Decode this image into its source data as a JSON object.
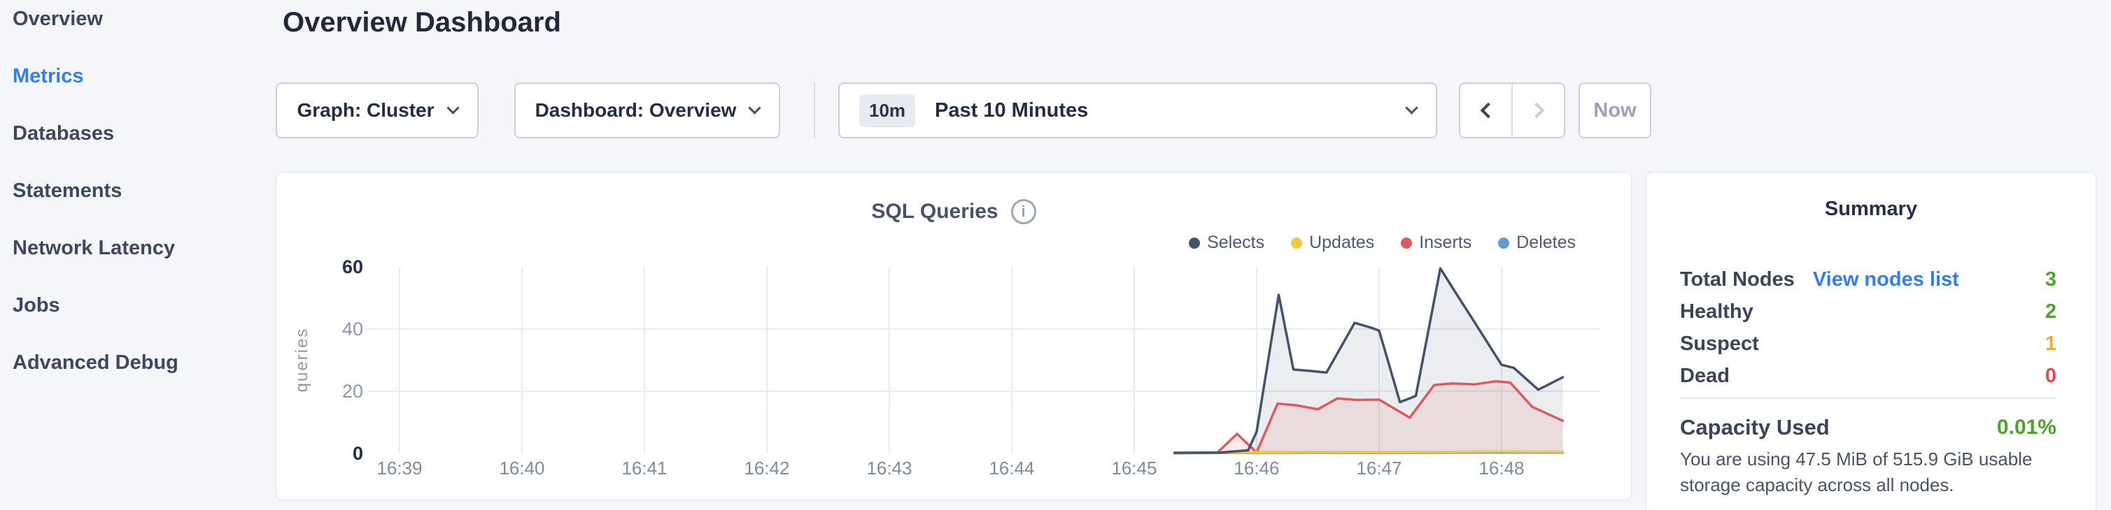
{
  "sidebar": {
    "items": [
      {
        "label": "Overview",
        "active": false
      },
      {
        "label": "Metrics",
        "active": true
      },
      {
        "label": "Databases",
        "active": false
      },
      {
        "label": "Statements",
        "active": false
      },
      {
        "label": "Network Latency",
        "active": false
      },
      {
        "label": "Jobs",
        "active": false
      },
      {
        "label": "Advanced Debug",
        "active": false
      }
    ]
  },
  "header": {
    "title": "Overview Dashboard"
  },
  "toolbar": {
    "graph_dropdown": "Graph: Cluster",
    "dashboard_dropdown": "Dashboard: Overview",
    "time_window": {
      "badge": "10m",
      "label": "Past 10 Minutes"
    },
    "now_label": "Now"
  },
  "chart_data": {
    "type": "area",
    "title": "SQL Queries",
    "ylabel": "queries",
    "xlabel": "",
    "x_ticks": [
      "16:39",
      "16:40",
      "16:41",
      "16:42",
      "16:43",
      "16:44",
      "16:45",
      "16:46",
      "16:47",
      "16:48"
    ],
    "y_ticks": [
      0,
      20,
      40,
      60
    ],
    "ylim": [
      0,
      60
    ],
    "grid": true,
    "legend_position": "top-right",
    "x_unit": "minutes after 16:39",
    "series": [
      {
        "name": "Selects",
        "color": "#44526b",
        "fill": "rgba(68,82,107,0.10)",
        "points": [
          [
            6.33,
            0.2
          ],
          [
            6.7,
            0.3
          ],
          [
            6.93,
            1
          ],
          [
            7.0,
            7
          ],
          [
            7.18,
            51
          ],
          [
            7.3,
            27
          ],
          [
            7.45,
            26.5
          ],
          [
            7.57,
            26
          ],
          [
            7.8,
            42
          ],
          [
            7.93,
            40.5
          ],
          [
            8.0,
            39.5
          ],
          [
            8.17,
            16.5
          ],
          [
            8.3,
            18.5
          ],
          [
            8.5,
            59.5
          ],
          [
            8.62,
            52
          ],
          [
            8.75,
            44
          ],
          [
            9.0,
            28.5
          ],
          [
            9.1,
            27.5
          ],
          [
            9.3,
            20.5
          ],
          [
            9.5,
            24.5
          ]
        ]
      },
      {
        "name": "Updates",
        "color": "#f2c83e",
        "fill": "none",
        "points": [
          [
            6.33,
            0.2
          ],
          [
            7.0,
            0.4
          ],
          [
            7.5,
            0.5
          ],
          [
            8.0,
            0.45
          ],
          [
            8.6,
            0.5
          ],
          [
            9.0,
            0.6
          ],
          [
            9.5,
            0.5
          ]
        ]
      },
      {
        "name": "Inserts",
        "color": "#e0595e",
        "fill": "rgba(224,89,94,0.12)",
        "points": [
          [
            6.33,
            0.1
          ],
          [
            6.68,
            0.3
          ],
          [
            6.84,
            6.3
          ],
          [
            7.0,
            0.3
          ],
          [
            7.17,
            16
          ],
          [
            7.32,
            15.5
          ],
          [
            7.5,
            14.2
          ],
          [
            7.66,
            17.7
          ],
          [
            7.82,
            17.2
          ],
          [
            8.0,
            17.3
          ],
          [
            8.25,
            11.5
          ],
          [
            8.45,
            22
          ],
          [
            8.6,
            22.5
          ],
          [
            8.78,
            22.2
          ],
          [
            8.95,
            23.2
          ],
          [
            9.07,
            22.8
          ],
          [
            9.25,
            15
          ],
          [
            9.5,
            10.5
          ]
        ]
      },
      {
        "name": "Deletes",
        "color": "#5b9fd3",
        "fill": "none",
        "points": [
          [
            6.33,
            0.1
          ],
          [
            7.0,
            0.2
          ],
          [
            7.5,
            0.25
          ],
          [
            8.0,
            0.2
          ],
          [
            8.6,
            0.25
          ],
          [
            9.0,
            0.3
          ],
          [
            9.5,
            0.25
          ]
        ]
      }
    ]
  },
  "summary": {
    "title": "Summary",
    "total_nodes_label": "Total Nodes",
    "view_nodes_link": "View nodes list",
    "total_nodes_value": "3",
    "rows": [
      {
        "label": "Healthy",
        "value": "2",
        "status": "green"
      },
      {
        "label": "Suspect",
        "value": "1",
        "status": "orange"
      },
      {
        "label": "Dead",
        "value": "0",
        "status": "red"
      }
    ],
    "capacity_label": "Capacity Used",
    "capacity_value": "0.01%",
    "capacity_description": "You are using 47.5 MiB of 515.9 GiB usable storage capacity across all nodes.",
    "colors": {
      "green": "#4ea32a",
      "orange": "#f0a63d",
      "red": "#e5484d",
      "link_blue": "#337df2"
    }
  }
}
